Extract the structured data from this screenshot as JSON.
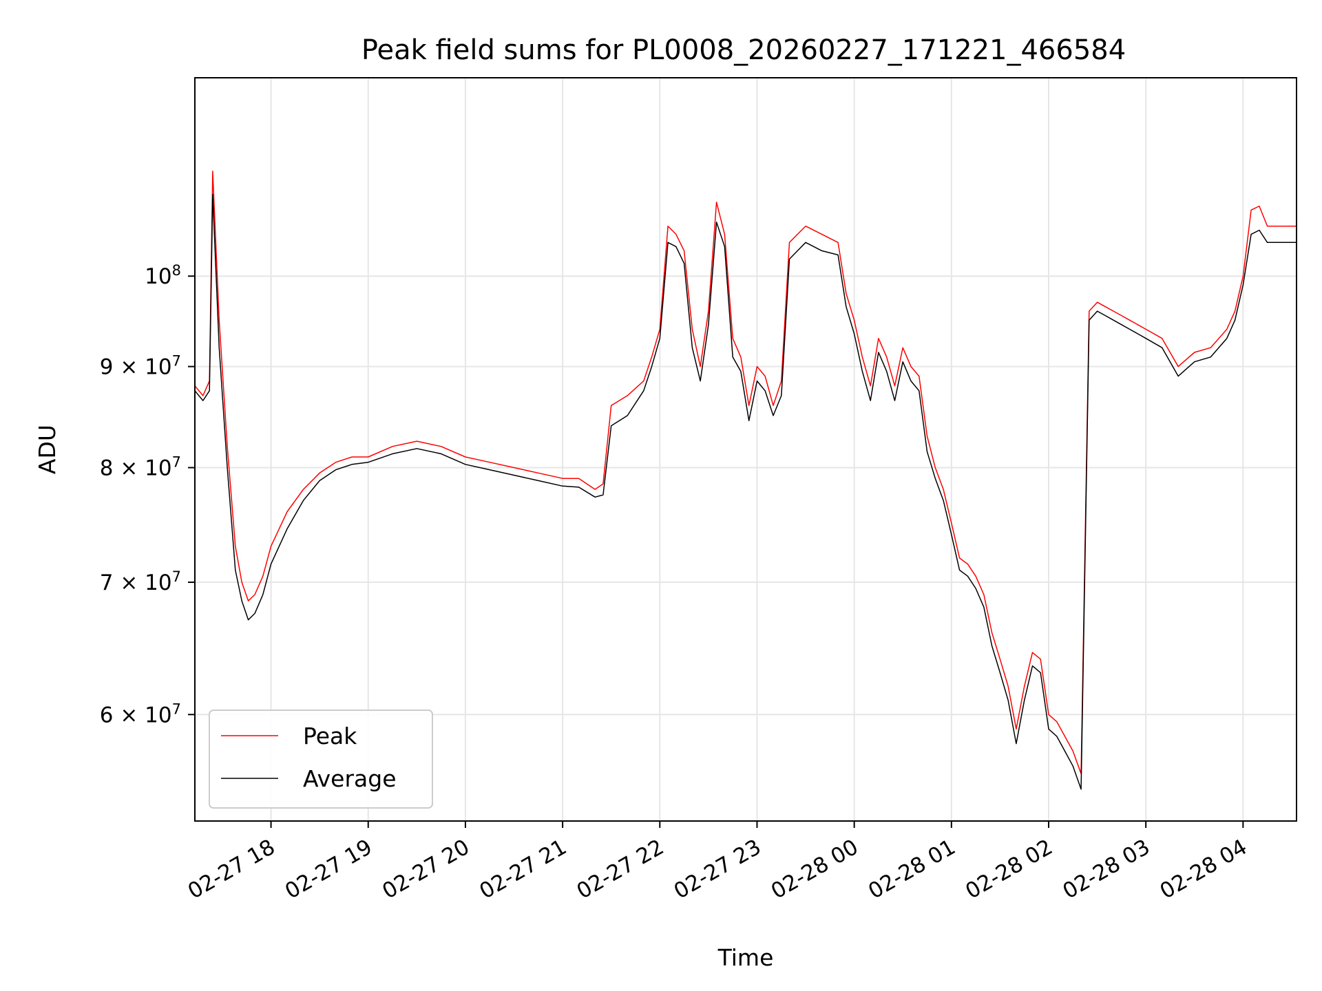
{
  "chart_data": {
    "type": "line",
    "title": "Peak field sums for PL0008_20260227_171221_466584",
    "xlabel": "Time",
    "ylabel": "ADU",
    "yscale": "log",
    "xlim": [
      "02-27 17:13",
      "02-28 04:33"
    ],
    "ylim": [
      53000000,
      126000000
    ],
    "grid": true,
    "legend_position": "lower-left",
    "x_ticks": [
      {
        "time": "02-27 18:00",
        "label": "02-27 18"
      },
      {
        "time": "02-27 19:00",
        "label": "02-27 19"
      },
      {
        "time": "02-27 20:00",
        "label": "02-27 20"
      },
      {
        "time": "02-27 21:00",
        "label": "02-27 21"
      },
      {
        "time": "02-27 22:00",
        "label": "02-27 22"
      },
      {
        "time": "02-27 23:00",
        "label": "02-27 23"
      },
      {
        "time": "02-28 00:00",
        "label": "02-28 00"
      },
      {
        "time": "02-28 01:00",
        "label": "02-28 01"
      },
      {
        "time": "02-28 02:00",
        "label": "02-28 02"
      },
      {
        "time": "02-28 03:00",
        "label": "02-28 03"
      },
      {
        "time": "02-28 04:00",
        "label": "02-28 04"
      }
    ],
    "y_ticks": [
      {
        "value": 60000000,
        "mantissa": "6",
        "exponent": "7"
      },
      {
        "value": 70000000,
        "mantissa": "7",
        "exponent": "7"
      },
      {
        "value": 80000000,
        "mantissa": "8",
        "exponent": "7"
      },
      {
        "value": 90000000,
        "mantissa": "9",
        "exponent": "7"
      },
      {
        "value": 100000000,
        "mantissa": "",
        "exponent": "8"
      }
    ],
    "series": [
      {
        "name": "Peak",
        "color": "#ff0000",
        "x": [
          "02-27 17:13",
          "02-27 17:18",
          "02-27 17:22",
          "02-27 17:24",
          "02-27 17:28",
          "02-27 17:33",
          "02-27 17:38",
          "02-27 17:42",
          "02-27 17:46",
          "02-27 17:50",
          "02-27 17:55",
          "02-27 18:00",
          "02-27 18:10",
          "02-27 18:20",
          "02-27 18:30",
          "02-27 18:40",
          "02-27 18:50",
          "02-27 19:00",
          "02-27 19:15",
          "02-27 19:30",
          "02-27 19:45",
          "02-27 20:00",
          "02-27 20:15",
          "02-27 20:30",
          "02-27 20:45",
          "02-27 21:00",
          "02-27 21:10",
          "02-27 21:20",
          "02-27 21:25",
          "02-27 21:30",
          "02-27 21:40",
          "02-27 21:50",
          "02-27 21:55",
          "02-27 22:00",
          "02-27 22:05",
          "02-27 22:10",
          "02-27 22:15",
          "02-27 22:20",
          "02-27 22:25",
          "02-27 22:30",
          "02-27 22:35",
          "02-27 22:40",
          "02-27 22:45",
          "02-27 22:50",
          "02-27 22:55",
          "02-27 23:00",
          "02-27 23:05",
          "02-27 23:10",
          "02-27 23:15",
          "02-27 23:20",
          "02-27 23:25",
          "02-27 23:30",
          "02-27 23:40",
          "02-27 23:50",
          "02-27 23:55",
          "02-28 00:00",
          "02-28 00:05",
          "02-28 00:10",
          "02-28 00:15",
          "02-28 00:20",
          "02-28 00:25",
          "02-28 00:30",
          "02-28 00:35",
          "02-28 00:40",
          "02-28 00:45",
          "02-28 00:50",
          "02-28 00:55",
          "02-28 01:00",
          "02-28 01:05",
          "02-28 01:10",
          "02-28 01:15",
          "02-28 01:20",
          "02-28 01:25",
          "02-28 01:30",
          "02-28 01:35",
          "02-28 01:40",
          "02-28 01:45",
          "02-28 01:50",
          "02-28 01:55",
          "02-28 02:00",
          "02-28 02:05",
          "02-28 02:10",
          "02-28 02:15",
          "02-28 02:20",
          "02-28 02:25",
          "02-28 02:30",
          "02-28 02:35",
          "02-28 02:40",
          "02-28 02:45",
          "02-28 02:50",
          "02-28 02:55",
          "02-28 03:00",
          "02-28 03:10",
          "02-28 03:20",
          "02-28 03:30",
          "02-28 03:40",
          "02-28 03:50",
          "02-28 03:55",
          "02-28 04:00",
          "02-28 04:05",
          "02-28 04:10",
          "02-28 04:15",
          "02-28 04:20",
          "02-28 04:25",
          "02-28 04:30",
          "02-28 04:33"
        ],
        "values": [
          88000000,
          87000000,
          88500000,
          113000000,
          95000000,
          82000000,
          73000000,
          70000000,
          68500000,
          69000000,
          70500000,
          73000000,
          76000000,
          78000000,
          79500000,
          80500000,
          81000000,
          81000000,
          82000000,
          82500000,
          82000000,
          81000000,
          80500000,
          80000000,
          79500000,
          79000000,
          79000000,
          78000000,
          78500000,
          86000000,
          87000000,
          88500000,
          91000000,
          94000000,
          106000000,
          105000000,
          103000000,
          94000000,
          90000000,
          96000000,
          109000000,
          105000000,
          93000000,
          91000000,
          86000000,
          90000000,
          89000000,
          86000000,
          88500000,
          104000000,
          105000000,
          106000000,
          105000000,
          104000000,
          98000000,
          95000000,
          91000000,
          88000000,
          93000000,
          91000000,
          88000000,
          92000000,
          90000000,
          89000000,
          83000000,
          80000000,
          78000000,
          75000000,
          72000000,
          71500000,
          70500000,
          69000000,
          66000000,
          64000000,
          62000000,
          59000000,
          62000000,
          64500000,
          64000000,
          60000000,
          59500000,
          58500000,
          57500000,
          56000000,
          96000000,
          97000000,
          96500000,
          96000000,
          95500000,
          95000000,
          94500000,
          94000000,
          93000000,
          90000000,
          91500000,
          92000000,
          94000000,
          96000000,
          100000000,
          108000000,
          108500000,
          106000000,
          106000000,
          106000000,
          106000000,
          106000000
        ]
      },
      {
        "name": "Average",
        "color": "#000000",
        "x": [
          "02-27 17:13",
          "02-27 17:18",
          "02-27 17:22",
          "02-27 17:24",
          "02-27 17:28",
          "02-27 17:33",
          "02-27 17:38",
          "02-27 17:42",
          "02-27 17:46",
          "02-27 17:50",
          "02-27 17:55",
          "02-27 18:00",
          "02-27 18:10",
          "02-27 18:20",
          "02-27 18:30",
          "02-27 18:40",
          "02-27 18:50",
          "02-27 19:00",
          "02-27 19:15",
          "02-27 19:30",
          "02-27 19:45",
          "02-27 20:00",
          "02-27 20:15",
          "02-27 20:30",
          "02-27 20:45",
          "02-27 21:00",
          "02-27 21:10",
          "02-27 21:20",
          "02-27 21:25",
          "02-27 21:30",
          "02-27 21:40",
          "02-27 21:50",
          "02-27 21:55",
          "02-27 22:00",
          "02-27 22:05",
          "02-27 22:10",
          "02-27 22:15",
          "02-27 22:20",
          "02-27 22:25",
          "02-27 22:30",
          "02-27 22:35",
          "02-27 22:40",
          "02-27 22:45",
          "02-27 22:50",
          "02-27 22:55",
          "02-27 23:00",
          "02-27 23:05",
          "02-27 23:10",
          "02-27 23:15",
          "02-27 23:20",
          "02-27 23:25",
          "02-27 23:30",
          "02-27 23:40",
          "02-27 23:50",
          "02-27 23:55",
          "02-28 00:00",
          "02-28 00:05",
          "02-28 00:10",
          "02-28 00:15",
          "02-28 00:20",
          "02-28 00:25",
          "02-28 00:30",
          "02-28 00:35",
          "02-28 00:40",
          "02-28 00:45",
          "02-28 00:50",
          "02-28 00:55",
          "02-28 01:00",
          "02-28 01:05",
          "02-28 01:10",
          "02-28 01:15",
          "02-28 01:20",
          "02-28 01:25",
          "02-28 01:30",
          "02-28 01:35",
          "02-28 01:40",
          "02-28 01:45",
          "02-28 01:50",
          "02-28 01:55",
          "02-28 02:00",
          "02-28 02:05",
          "02-28 02:10",
          "02-28 02:15",
          "02-28 02:20",
          "02-28 02:25",
          "02-28 02:30",
          "02-28 02:35",
          "02-28 02:40",
          "02-28 02:45",
          "02-28 02:50",
          "02-28 02:55",
          "02-28 03:00",
          "02-28 03:10",
          "02-28 03:20",
          "02-28 03:30",
          "02-28 03:40",
          "02-28 03:50",
          "02-28 03:55",
          "02-28 04:00",
          "02-28 04:05",
          "02-28 04:10",
          "02-28 04:15",
          "02-28 04:20",
          "02-28 04:25",
          "02-28 04:30",
          "02-28 04:33"
        ],
        "values": [
          87500000,
          86500000,
          87500000,
          110000000,
          92000000,
          80000000,
          71000000,
          68500000,
          67000000,
          67500000,
          69000000,
          71500000,
          74500000,
          77000000,
          78800000,
          79800000,
          80300000,
          80500000,
          81300000,
          81800000,
          81300000,
          80300000,
          79800000,
          79300000,
          78800000,
          78300000,
          78200000,
          77300000,
          77500000,
          84000000,
          85000000,
          87500000,
          90000000,
          93000000,
          104000000,
          103500000,
          101500000,
          92000000,
          88500000,
          94500000,
          106500000,
          103500000,
          91000000,
          89500000,
          84500000,
          88500000,
          87500000,
          85000000,
          87000000,
          102000000,
          103000000,
          104000000,
          103000000,
          102500000,
          96500000,
          93500000,
          89500000,
          86500000,
          91500000,
          89500000,
          86500000,
          90500000,
          88500000,
          87500000,
          81500000,
          79000000,
          77000000,
          74000000,
          71000000,
          70500000,
          69500000,
          68000000,
          65000000,
          63000000,
          61000000,
          58000000,
          61000000,
          63500000,
          63000000,
          59000000,
          58500000,
          57500000,
          56500000,
          55000000,
          95000000,
          96000000,
          95500000,
          95000000,
          94500000,
          94000000,
          93500000,
          93000000,
          92000000,
          89000000,
          90500000,
          91000000,
          93000000,
          95000000,
          99000000,
          105000000,
          105500000,
          104000000,
          104000000,
          104000000,
          104000000,
          104000000
        ]
      }
    ]
  }
}
